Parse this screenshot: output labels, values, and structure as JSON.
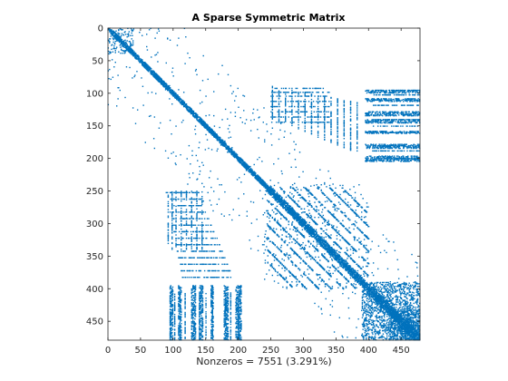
{
  "chart_data": {
    "type": "scatter",
    "subtype": "sparsity-pattern",
    "title": "A Sparse Symmetric Matrix",
    "xlabel": "Nonzeros = 7551 (3.291%)",
    "ylabel": "",
    "matrix_size": 479,
    "nonzeros": 7551,
    "density_percent": 3.291,
    "xlim": [
      0,
      479
    ],
    "ylim": [
      479,
      0
    ],
    "y_axis_direction": "reversed",
    "grid": false,
    "legend": "none",
    "marker_color": "#0072BD",
    "x_ticks": [
      0,
      50,
      100,
      150,
      200,
      250,
      300,
      350,
      400,
      450
    ],
    "y_ticks": [
      0,
      50,
      100,
      150,
      200,
      250,
      300,
      350,
      400,
      450
    ],
    "pattern_features": [
      "dense main diagonal band",
      "off-diagonal diagonal stripes between rows 240 and 400",
      "dense blocks near rows and columns 390-479",
      "vertical dotted columns in upper-right and lower-left regions"
    ]
  }
}
